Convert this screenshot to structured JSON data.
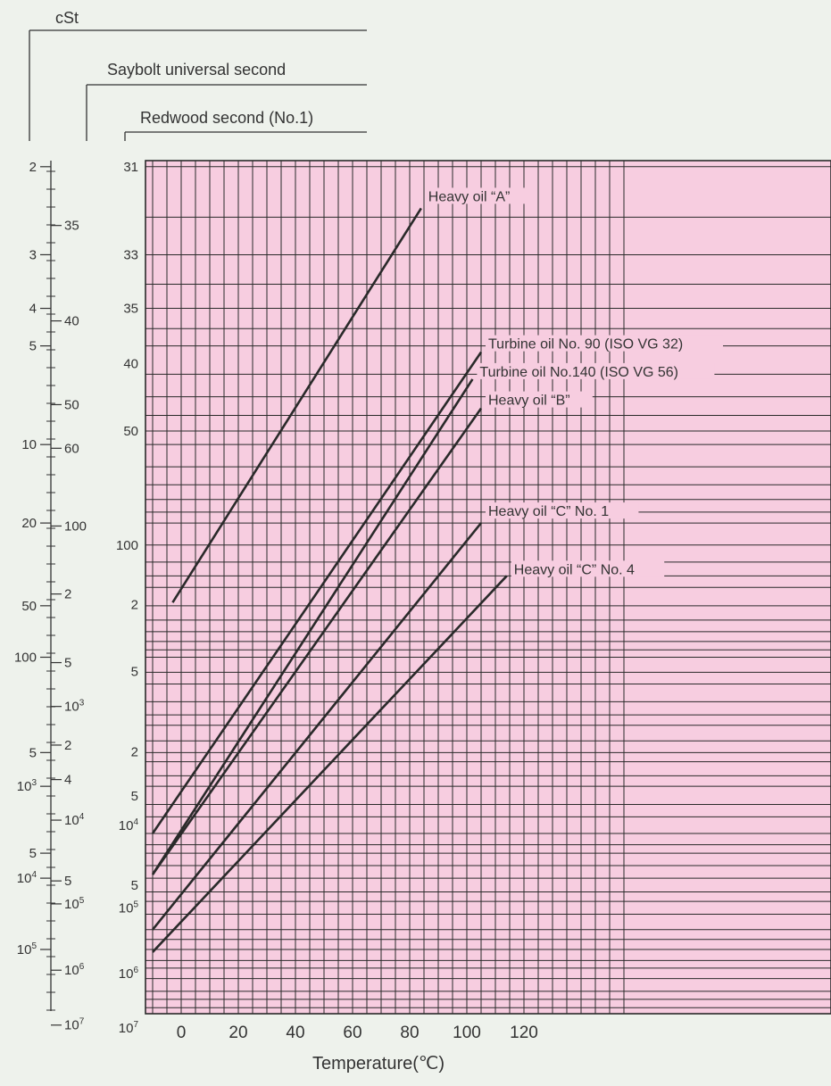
{
  "chart_data": {
    "type": "line",
    "xlabel": "Temperature(℃)",
    "x_ticks": [
      0,
      20,
      40,
      60,
      80,
      100,
      120
    ],
    "x_range": [
      -10,
      155
    ],
    "viscosity_scales": {
      "cst": "cSt",
      "saybolt": "Saybolt universal second",
      "redwood": "Redwood second (No.1)"
    },
    "axis_cst": [
      {
        "t": "2",
        "v": 2
      },
      {
        "t": "3",
        "v": 3
      },
      {
        "t": "4",
        "v": 4
      },
      {
        "t": "5",
        "v": 5
      },
      {
        "t": "10",
        "v": 10
      },
      {
        "t": "20",
        "v": 20
      },
      {
        "t": "50",
        "v": 50
      },
      {
        "t": "100",
        "v": 100
      },
      {
        "t": "5",
        "v": 500
      },
      {
        "b": "10",
        "e": "3",
        "v": 1000
      },
      {
        "t": "5",
        "v": 5000
      },
      {
        "b": "10",
        "e": "4",
        "v": 10000
      },
      {
        "b": "10",
        "e": "5",
        "v": 100000
      }
    ],
    "axis_saybolt": [
      {
        "t": "35",
        "v": 35
      },
      {
        "t": "40",
        "v": 40
      },
      {
        "t": "50",
        "v": 50
      },
      {
        "t": "60",
        "v": 60
      },
      {
        "t": "100",
        "v": 100
      },
      {
        "t": "2",
        "v": 200
      },
      {
        "t": "5",
        "v": 500
      },
      {
        "b": "10",
        "e": "3",
        "v": 1000
      },
      {
        "t": "2",
        "v": 2000
      },
      {
        "t": "4",
        "v": 4000
      },
      {
        "b": "10",
        "e": "4",
        "v": 10000
      },
      {
        "t": "5",
        "v": 50000
      },
      {
        "b": "10",
        "e": "5",
        "v": 100000
      },
      {
        "b": "10",
        "e": "6",
        "v": 1000000
      },
      {
        "b": "10",
        "e": "7",
        "v": 10000000
      }
    ],
    "axis_redwood": [
      {
        "t": "31",
        "v": 31
      },
      {
        "t": "33",
        "v": 33
      },
      {
        "t": "35",
        "v": 35
      },
      {
        "t": "40",
        "v": 40
      },
      {
        "t": "50",
        "v": 50
      },
      {
        "t": "100",
        "v": 100
      },
      {
        "t": "2",
        "v": 200
      },
      {
        "t": "5",
        "v": 500
      },
      {
        "t": "2",
        "v": 2000
      },
      {
        "t": "5",
        "v": 5000
      },
      {
        "b": "10",
        "e": "4",
        "v": 10000
      },
      {
        "t": "5",
        "v": 50000
      },
      {
        "b": "10",
        "e": "5",
        "v": 100000
      },
      {
        "b": "10",
        "e": "6",
        "v": 1000000
      },
      {
        "b": "10",
        "e": "7",
        "v": 10000000
      }
    ],
    "series": [
      {
        "name": "Heavy oil “A”",
        "unit": "cSt",
        "points": [
          [
            -3,
            48
          ],
          [
            84,
            2.4
          ]
        ]
      },
      {
        "name": "Turbine oil No. 90 (ISO VG 32)",
        "unit": "cSt",
        "points": [
          [
            -10,
            3000
          ],
          [
            105,
            5.2
          ]
        ]
      },
      {
        "name": "Turbine oil No.140 (ISO VG 56)",
        "unit": "cSt",
        "points": [
          [
            -10,
            9000
          ],
          [
            102,
            6.2
          ]
        ]
      },
      {
        "name": "Heavy oil “B”",
        "unit": "cSt",
        "points": [
          [
            -10,
            9000
          ],
          [
            105,
            7.6
          ]
        ]
      },
      {
        "name": "Heavy oil “C” No. 1",
        "unit": "cSt",
        "points": [
          [
            -10,
            50000
          ],
          [
            105,
            20
          ]
        ]
      },
      {
        "name": "Heavy oil “C” No. 4",
        "unit": "cSt",
        "points": [
          [
            -10,
            110000
          ],
          [
            114,
            35
          ]
        ]
      }
    ]
  },
  "colors": {
    "plot_bg": "#f7cde0",
    "grid": "#2a2a2a",
    "line": "#2a2a2a",
    "page_bg": "#eef2ec"
  }
}
